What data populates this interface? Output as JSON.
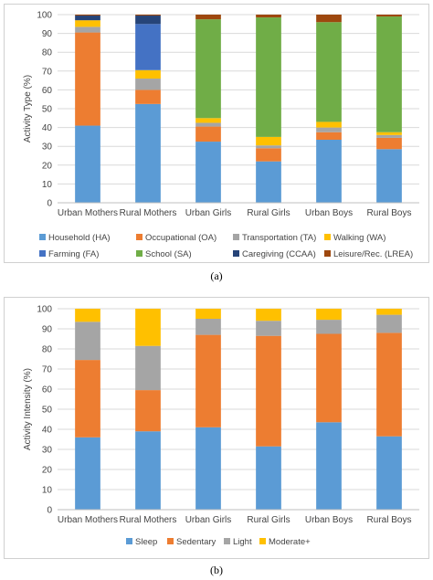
{
  "chart_data": [
    {
      "type": "bar",
      "stacked": true,
      "panel_label": "(a)",
      "categories": [
        "Urban Mothers",
        "Rural Mothers",
        "Urban Girls",
        "Rural Girls",
        "Urban Boys",
        "Rural Boys"
      ],
      "ylabel": "Activity Type (%)",
      "xlabel": "",
      "ylim": [
        0,
        100
      ],
      "yticks": [
        0,
        10,
        20,
        30,
        40,
        50,
        60,
        70,
        80,
        90,
        100
      ],
      "grid": true,
      "legend_position": "bottom",
      "series": [
        {
          "name": "Household (HA)",
          "color": "#5b9bd5",
          "values": [
            41,
            52.5,
            32.5,
            22,
            33.5,
            28.5
          ]
        },
        {
          "name": "Occupational (OA)",
          "color": "#ed7d31",
          "values": [
            49.5,
            7.5,
            8,
            7,
            4,
            6
          ]
        },
        {
          "name": "Transportation (TA)",
          "color": "#a5a5a5",
          "values": [
            3,
            6,
            2,
            1.5,
            2.5,
            1.5
          ]
        },
        {
          "name": "Walking (WA)",
          "color": "#ffc000",
          "values": [
            3.5,
            4.5,
            2.5,
            4.5,
            3,
            1.5
          ]
        },
        {
          "name": "Farming (FA)",
          "color": "#4472c4",
          "values": [
            0,
            24.5,
            0,
            0,
            0,
            0
          ]
        },
        {
          "name": "School (SA)",
          "color": "#70ad47",
          "values": [
            0,
            0,
            52.5,
            63.5,
            53,
            61.5
          ]
        },
        {
          "name": "Caregiving (CCAA)",
          "color": "#264478",
          "values": [
            2.5,
            4.5,
            0,
            0,
            0,
            0
          ]
        },
        {
          "name": "Leisure/Rec. (LREA)",
          "color": "#9e480e",
          "values": [
            0.5,
            0.5,
            2.5,
            1.5,
            4,
            1
          ]
        }
      ]
    },
    {
      "type": "bar",
      "stacked": true,
      "panel_label": "(b)",
      "categories": [
        "Urban Mothers",
        "Rural Mothers",
        "Urban Girls",
        "Rural Girls",
        "Urban Boys",
        "Rural Boys"
      ],
      "ylabel": "Activity Intensity (%)",
      "xlabel": "",
      "ylim": [
        0,
        100
      ],
      "yticks": [
        0,
        10,
        20,
        30,
        40,
        50,
        60,
        70,
        80,
        90,
        100
      ],
      "grid": true,
      "legend_position": "bottom",
      "series": [
        {
          "name": "Sleep",
          "color": "#5b9bd5",
          "values": [
            36,
            39,
            41,
            31.5,
            43.5,
            36.5
          ]
        },
        {
          "name": "Sedentary",
          "color": "#ed7d31",
          "values": [
            38.5,
            20.5,
            46,
            55,
            44,
            51.5
          ]
        },
        {
          "name": "Light",
          "color": "#a5a5a5",
          "values": [
            19,
            22,
            8,
            7.5,
            7,
            9
          ]
        },
        {
          "name": "Moderate+",
          "color": "#ffc000",
          "values": [
            6.5,
            18.5,
            5,
            6,
            5.5,
            3
          ]
        }
      ]
    }
  ]
}
